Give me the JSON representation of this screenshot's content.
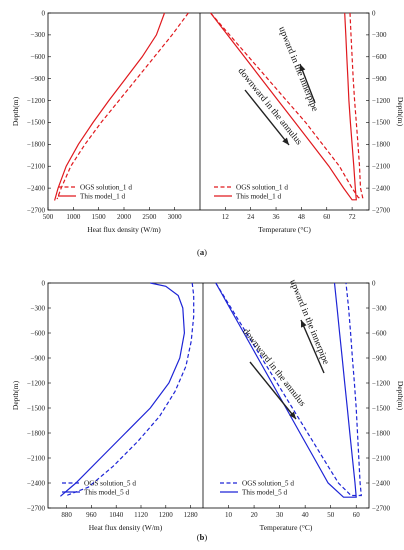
{
  "colors": {
    "panel_a": "#e0191e",
    "panel_b": "#1d24d6",
    "axis": "#000000",
    "annotation_arrow": "#222222"
  },
  "chart_data": [
    {
      "id": "a",
      "type": "line",
      "panel_label": "(a)",
      "left": {
        "xlabel": "Heat flux density (W/m)",
        "ylabel": "Depth(m)",
        "xlim": [
          500,
          3500
        ],
        "xticks": [
          500,
          1000,
          1500,
          2000,
          2500,
          3000
        ],
        "ylim": [
          -2700,
          0
        ],
        "yticks": [
          0,
          -300,
          -600,
          -900,
          -1200,
          -1500,
          -1800,
          -2100,
          -2400,
          -2700
        ],
        "series": [
          {
            "name": "OGS solution_1 d",
            "style": "dashed",
            "x": [
              3270,
              2950,
              2600,
              2250,
              1900,
              1550,
              1230,
              950,
              760,
              680
            ],
            "y": [
              0,
              -300,
              -600,
              -900,
              -1200,
              -1500,
              -1800,
              -2100,
              -2400,
              -2550
            ]
          },
          {
            "name": "This model_1 d",
            "style": "solid",
            "x": [
              2800,
              2640,
              2360,
              2030,
              1700,
              1390,
              1100,
              860,
              700,
              630
            ],
            "y": [
              0,
              -300,
              -600,
              -900,
              -1200,
              -1500,
              -1800,
              -2100,
              -2400,
              -2570
            ]
          }
        ]
      },
      "right": {
        "xlabel": "Temperature (°C)",
        "ylabel": "Depth(m)",
        "xlim": [
          0,
          80
        ],
        "xticks": [
          12,
          24,
          36,
          48,
          60,
          72
        ],
        "ylim": [
          -2700,
          0
        ],
        "yticks": [
          0,
          -300,
          -600,
          -900,
          -1200,
          -1500,
          -1800,
          -2100,
          -2400,
          -2700
        ],
        "series": [
          {
            "name": "OGS solution_1 d",
            "style": "dashed",
            "x": [
              5,
              14,
              23,
              32,
              41,
              50,
              58,
              66,
              72,
              75,
              77,
              76,
              75.5,
              74.8,
              74,
              73.2,
              72.5,
              72,
              71.5,
              71
            ],
            "y": [
              0,
              -300,
              -600,
              -900,
              -1200,
              -1500,
              -1800,
              -2100,
              -2400,
              -2530,
              -2530,
              -2400,
              -2100,
              -1800,
              -1500,
              -1200,
              -900,
              -600,
              -300,
              0
            ]
          },
          {
            "name": "This model_1 d",
            "style": "solid",
            "x": [
              5,
              13,
              21,
              29,
              37,
              45,
              53,
              61,
              68,
              72,
              74,
              73.5,
              72.8,
              72,
              71.2,
              70.5,
              70,
              69.5,
              69,
              68.5
            ],
            "y": [
              0,
              -300,
              -600,
              -900,
              -1200,
              -1500,
              -1800,
              -2100,
              -2400,
              -2560,
              -2560,
              -2400,
              -2100,
              -1800,
              -1500,
              -1200,
              -900,
              -600,
              -300,
              0
            ]
          }
        ],
        "annotations": [
          {
            "text": "upward in the innerpipe",
            "angle_deg": 70
          },
          {
            "text": "downward in the annulus",
            "angle_deg": 50
          }
        ]
      }
    },
    {
      "id": "b",
      "type": "line",
      "panel_label": "(b)",
      "left": {
        "xlabel": "Heat flux density (W/m)",
        "ylabel": "Depth(m)",
        "xlim": [
          820,
          1320
        ],
        "xticks": [
          880,
          960,
          1040,
          1120,
          1200,
          1280
        ],
        "ylim": [
          -2700,
          0
        ],
        "yticks": [
          0,
          -300,
          -600,
          -900,
          -1200,
          -1500,
          -1800,
          -2100,
          -2400,
          -2700
        ],
        "series": [
          {
            "name": "OGS solution_5 d",
            "style": "dashed",
            "x": [
              1285,
              1290,
              1290,
              1282,
              1265,
              1230,
              1180,
              1110,
              1030,
              950,
              880
            ],
            "y": [
              0,
              -150,
              -400,
              -700,
              -1000,
              -1300,
              -1600,
              -1900,
              -2200,
              -2450,
              -2550
            ]
          },
          {
            "name": "This model_5 d",
            "style": "solid",
            "x": [
              1150,
              1200,
              1240,
              1255,
              1260,
              1245,
              1210,
              1150,
              1070,
              990,
              910,
              860
            ],
            "y": [
              0,
              -40,
              -150,
              -300,
              -600,
              -900,
              -1200,
              -1500,
              -1800,
              -2100,
              -2400,
              -2560
            ]
          }
        ]
      },
      "right": {
        "xlabel": "Temperature (°C)",
        "ylabel": "Depth(m)",
        "xlim": [
          0,
          65
        ],
        "xticks": [
          10,
          20,
          30,
          40,
          50,
          60
        ],
        "ylim": [
          -2700,
          0
        ],
        "yticks": [
          0,
          -300,
          -600,
          -900,
          -1200,
          -1500,
          -1800,
          -2100,
          -2400,
          -2700
        ],
        "series": [
          {
            "name": "OGS solution_5 d",
            "style": "dashed",
            "x": [
              5,
              11,
              17,
              23,
              29,
              35,
              41,
              47,
              53,
              58,
              62,
              61.5,
              61,
              60.5,
              60,
              59.3,
              58.5,
              57.8,
              57,
              56
            ],
            "y": [
              0,
              -300,
              -600,
              -900,
              -1200,
              -1500,
              -1800,
              -2100,
              -2400,
              -2550,
              -2550,
              -2400,
              -2100,
              -1800,
              -1500,
              -1200,
              -900,
              -600,
              -300,
              0
            ]
          },
          {
            "name": "This model_5 d",
            "style": "solid",
            "x": [
              5,
              10.5,
              16,
              21.5,
              27,
              32.5,
              38,
              43.5,
              49,
              55,
              60,
              59.5,
              58.5,
              57.5,
              56.5,
              55.5,
              54.5,
              53.5,
              52.5,
              51.5
            ],
            "y": [
              0,
              -300,
              -600,
              -900,
              -1200,
              -1500,
              -1800,
              -2100,
              -2400,
              -2570,
              -2570,
              -2400,
              -2100,
              -1800,
              -1500,
              -1200,
              -900,
              -600,
              -300,
              0
            ]
          }
        ],
        "annotations": [
          {
            "text": "upward in the innerpipe",
            "angle_deg": 68
          },
          {
            "text": "downward in the annulus",
            "angle_deg": 52
          }
        ]
      }
    }
  ]
}
